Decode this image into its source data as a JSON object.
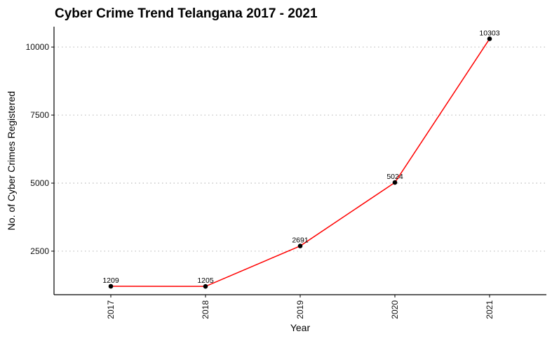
{
  "chart_data": {
    "type": "line",
    "title": "Cyber Crime Trend Telangana 2017 - 2021",
    "xlabel": "Year",
    "ylabel": "No. of Cyber Crimes Registered",
    "categories": [
      "2017",
      "2018",
      "2019",
      "2020",
      "2021"
    ],
    "series": [
      {
        "values": [
          1209,
          1205,
          2691,
          5024,
          10303
        ],
        "color": "#ff0000"
      }
    ],
    "data_labels": [
      "1209",
      "1205",
      "2691",
      "5024",
      "10303"
    ],
    "ylim": [
      900,
      10750
    ],
    "yticks": [
      2500,
      5000,
      7500,
      10000
    ],
    "ytick_labels": [
      "2500",
      "5000",
      "7500",
      "10000"
    ],
    "grid": "horizontal-dotted",
    "point_color": "#000000"
  }
}
